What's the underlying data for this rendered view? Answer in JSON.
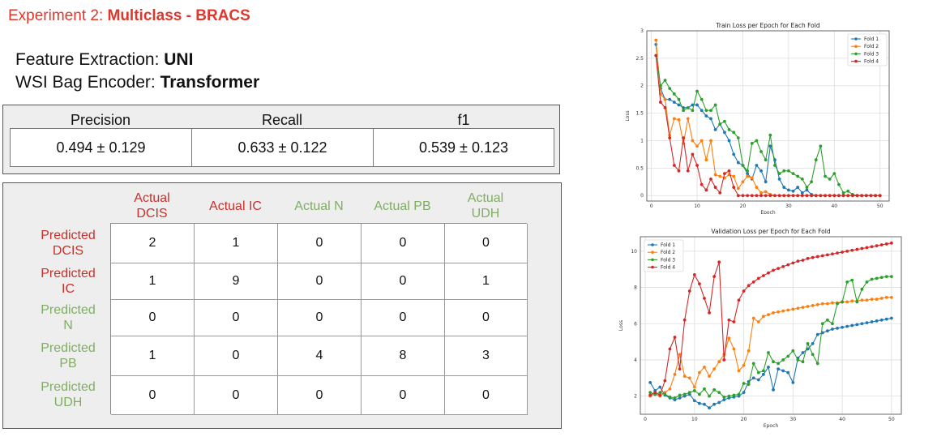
{
  "experiment": {
    "prefix": "Experiment 2: ",
    "name": "Multiclass - BRACS"
  },
  "feature": {
    "label": "Feature Extraction: ",
    "value": "UNI"
  },
  "encoder": {
    "label": "WSI Bag Encoder: ",
    "value": "Transformer"
  },
  "metrics": {
    "headers": [
      "Precision",
      "Recall",
      "f1"
    ],
    "values": [
      "0.494 ± 0.129",
      "0.633 ± 0.122",
      "0.539 ± 0.123"
    ]
  },
  "confusion": {
    "columns": [
      {
        "line1": "Actual",
        "line2": "DCIS",
        "color": "red"
      },
      {
        "line1": "Actual IC",
        "line2": "",
        "color": "red"
      },
      {
        "line1": "Actual N",
        "line2": "",
        "color": "green"
      },
      {
        "line1": "Actual PB",
        "line2": "",
        "color": "green"
      },
      {
        "line1": "Actual",
        "line2": "UDH",
        "color": "green"
      }
    ],
    "rows": [
      {
        "line1": "Predicted",
        "line2": "DCIS",
        "color": "red",
        "values": [
          "2",
          "1",
          "0",
          "0",
          "0"
        ]
      },
      {
        "line1": "Predicted",
        "line2": "IC",
        "color": "red",
        "values": [
          "1",
          "9",
          "0",
          "0",
          "1"
        ]
      },
      {
        "line1": "Predicted",
        "line2": "N",
        "color": "green",
        "values": [
          "0",
          "0",
          "0",
          "0",
          "0"
        ]
      },
      {
        "line1": "Predicted",
        "line2": "PB",
        "color": "green",
        "values": [
          "1",
          "0",
          "4",
          "8",
          "3"
        ]
      },
      {
        "line1": "Predicted",
        "line2": "UDH",
        "color": "green",
        "values": [
          "0",
          "0",
          "0",
          "0",
          "0"
        ]
      }
    ]
  },
  "colors": {
    "accent_red": "#e0362b",
    "red_label": "#c8302b",
    "green_label": "#7fae61",
    "fold1": "#1f77b4",
    "fold2": "#ff7f0e",
    "fold3": "#2ca02c",
    "fold4": "#d62728"
  },
  "chart_data": [
    {
      "type": "line",
      "title": "Train Loss per Epoch for Each Fold",
      "xlabel": "Epoch",
      "ylabel": "Loss",
      "xlim": [
        -1,
        52
      ],
      "ylim": [
        -0.1,
        3.0
      ],
      "xticks": [
        0,
        10,
        20,
        30,
        40,
        50
      ],
      "yticks": [
        0.0,
        0.5,
        1.0,
        1.5,
        2.0,
        2.5,
        3.0
      ],
      "grid": true,
      "legend": "top-right",
      "series": [
        {
          "name": "Fold 1",
          "color": "#1f77b4",
          "x": [
            1,
            2,
            3,
            4,
            5,
            6,
            7,
            8,
            9,
            10,
            11,
            12,
            13,
            14,
            15,
            16,
            17,
            18,
            19,
            20,
            21,
            22,
            23,
            24,
            25,
            26,
            27,
            28,
            29,
            30,
            31,
            32,
            33,
            34,
            35,
            36,
            37,
            38,
            39,
            40,
            41,
            42,
            43,
            44,
            45,
            46,
            47,
            48,
            49,
            50
          ],
          "values": [
            2.75,
            1.95,
            1.75,
            1.75,
            1.7,
            1.65,
            1.6,
            1.6,
            1.65,
            1.65,
            1.55,
            1.45,
            1.4,
            1.2,
            1.3,
            1.15,
            1.0,
            0.75,
            0.6,
            0.55,
            0.4,
            0.3,
            0.55,
            0.45,
            0.25,
            0.9,
            0.65,
            0.3,
            0.15,
            0.1,
            0.08,
            0.15,
            0.05,
            0.1,
            0.02,
            0,
            0,
            0,
            0,
            0,
            0,
            0,
            0,
            0,
            0,
            0,
            0,
            0,
            0,
            0
          ]
        },
        {
          "name": "Fold 2",
          "color": "#ff7f0e",
          "x": [
            1,
            2,
            3,
            4,
            5,
            6,
            7,
            8,
            9,
            10,
            11,
            12,
            13,
            14,
            15,
            16,
            17,
            18,
            19,
            20,
            21,
            22,
            23,
            24,
            25,
            26,
            27,
            28,
            29,
            30,
            31,
            32,
            33,
            34,
            35,
            36,
            37,
            38,
            39,
            40,
            41,
            42,
            43,
            44,
            45,
            46,
            47,
            48,
            49,
            50
          ],
          "values": [
            2.83,
            1.85,
            1.75,
            1.1,
            1.4,
            1.38,
            0.95,
            1.4,
            1.0,
            0.9,
            1.0,
            0.65,
            1.0,
            0.38,
            0.35,
            0.32,
            0.38,
            0.35,
            0.13,
            0.25,
            0.35,
            0.32,
            0.15,
            0.05,
            0.07,
            0.02,
            0,
            0,
            0,
            0,
            0,
            0,
            0,
            0,
            0,
            0,
            0,
            0,
            0,
            0,
            0,
            0,
            0,
            0,
            0,
            0,
            0,
            0,
            0,
            0
          ]
        },
        {
          "name": "Fold 3",
          "color": "#2ca02c",
          "x": [
            1,
            2,
            3,
            4,
            5,
            6,
            7,
            8,
            9,
            10,
            11,
            12,
            13,
            14,
            15,
            16,
            17,
            18,
            19,
            20,
            21,
            22,
            23,
            24,
            25,
            26,
            27,
            28,
            29,
            30,
            31,
            32,
            33,
            34,
            35,
            36,
            37,
            38,
            39,
            40,
            41,
            42,
            43,
            44,
            45,
            46,
            47,
            48,
            49,
            50
          ],
          "values": [
            2.55,
            2.0,
            2.1,
            1.95,
            1.85,
            1.75,
            1.55,
            1.6,
            1.55,
            1.9,
            1.75,
            1.55,
            1.55,
            1.65,
            1.3,
            1.35,
            1.2,
            1.15,
            1.05,
            0.55,
            0.45,
            0.95,
            1.0,
            0.8,
            0.65,
            1.1,
            0.55,
            0.4,
            0.45,
            0.45,
            0.4,
            0.35,
            0.3,
            0.15,
            0.25,
            0.65,
            0.9,
            0.35,
            0.3,
            0.4,
            0.2,
            0.05,
            0.08,
            0.02,
            0,
            0,
            0,
            0,
            0,
            0
          ]
        },
        {
          "name": "Fold 4",
          "color": "#d62728",
          "x": [
            1,
            2,
            3,
            4,
            5,
            6,
            7,
            8,
            9,
            10,
            11,
            12,
            13,
            14,
            15,
            16,
            17,
            18,
            19,
            20,
            21,
            22,
            23,
            24,
            25,
            26,
            27,
            28,
            29,
            30,
            31,
            32,
            33,
            34,
            35,
            36,
            37,
            38,
            39,
            40,
            41,
            42,
            43,
            44,
            45,
            46,
            47,
            48,
            49,
            50
          ],
          "values": [
            2.55,
            1.7,
            1.6,
            1.05,
            0.55,
            0.45,
            1.05,
            0.45,
            0.75,
            0.55,
            0.2,
            0.1,
            0.3,
            0.15,
            0.05,
            0.4,
            0.45,
            0.15,
            0,
            0,
            0,
            0,
            0,
            0,
            0,
            0,
            0,
            0,
            0,
            0,
            0,
            0,
            0,
            0,
            0,
            0,
            0,
            0,
            0,
            0,
            0,
            0,
            0,
            0,
            0,
            0,
            0,
            0,
            0,
            0
          ]
        }
      ]
    },
    {
      "type": "line",
      "title": "Validation Loss per Epoch for Each Fold",
      "xlabel": "Epoch",
      "ylabel": "Loss",
      "xlim": [
        -1,
        52
      ],
      "ylim": [
        1.0,
        10.8
      ],
      "xticks": [
        0,
        10,
        20,
        30,
        40,
        50
      ],
      "yticks": [
        2,
        4,
        6,
        8,
        10
      ],
      "grid": true,
      "legend": "top-left",
      "series": [
        {
          "name": "Fold 1",
          "color": "#1f77b4",
          "x": [
            1,
            2,
            3,
            4,
            5,
            6,
            7,
            8,
            9,
            10,
            11,
            12,
            13,
            14,
            15,
            16,
            17,
            18,
            19,
            20,
            21,
            22,
            23,
            24,
            25,
            26,
            27,
            28,
            29,
            30,
            31,
            32,
            33,
            34,
            35,
            36,
            37,
            38,
            39,
            40,
            41,
            42,
            43,
            44,
            45,
            46,
            47,
            48,
            49,
            50
          ],
          "values": [
            2.75,
            2.3,
            2.5,
            2.05,
            1.9,
            1.8,
            1.9,
            2.0,
            2.1,
            1.75,
            1.6,
            1.55,
            1.35,
            1.55,
            1.65,
            1.8,
            1.9,
            1.95,
            2.0,
            2.2,
            2.8,
            3.0,
            2.9,
            3.2,
            3.6,
            2.35,
            3.5,
            3.4,
            3.3,
            2.75,
            4.1,
            4.4,
            4.6,
            4.9,
            5.4,
            5.5,
            5.6,
            5.7,
            5.75,
            5.8,
            5.85,
            5.9,
            5.95,
            6.0,
            6.05,
            6.1,
            6.15,
            6.2,
            6.25,
            6.3
          ]
        },
        {
          "name": "Fold 2",
          "color": "#ff7f0e",
          "x": [
            1,
            2,
            3,
            4,
            5,
            6,
            7,
            8,
            9,
            10,
            11,
            12,
            13,
            14,
            15,
            16,
            17,
            18,
            19,
            20,
            21,
            22,
            23,
            24,
            25,
            26,
            27,
            28,
            29,
            30,
            31,
            32,
            33,
            34,
            35,
            36,
            37,
            38,
            39,
            40,
            41,
            42,
            43,
            44,
            45,
            46,
            47,
            48,
            49,
            50
          ],
          "values": [
            2.0,
            2.1,
            2.0,
            2.2,
            2.4,
            3.2,
            4.3,
            3.1,
            3.0,
            2.5,
            3.3,
            3.6,
            3.1,
            3.5,
            3.9,
            4.3,
            5.2,
            4.6,
            3.4,
            3.7,
            4.5,
            6.3,
            6.1,
            6.4,
            6.5,
            6.6,
            6.65,
            6.7,
            6.75,
            6.8,
            6.85,
            6.9,
            6.95,
            7.0,
            7.05,
            7.1,
            7.1,
            7.15,
            7.15,
            7.2,
            7.2,
            7.25,
            7.25,
            7.3,
            7.3,
            7.35,
            7.35,
            7.4,
            7.45,
            7.45
          ]
        },
        {
          "name": "Fold 3",
          "color": "#2ca02c",
          "x": [
            1,
            2,
            3,
            4,
            5,
            6,
            7,
            8,
            9,
            10,
            11,
            12,
            13,
            14,
            15,
            16,
            17,
            18,
            19,
            20,
            21,
            22,
            23,
            24,
            25,
            26,
            27,
            28,
            29,
            30,
            31,
            32,
            33,
            34,
            35,
            36,
            37,
            38,
            39,
            40,
            41,
            42,
            43,
            44,
            45,
            46,
            47,
            48,
            49,
            50
          ],
          "values": [
            2.2,
            2.1,
            2.2,
            2.1,
            1.95,
            1.9,
            2.05,
            2.1,
            2.2,
            2.3,
            2.1,
            2.4,
            2.0,
            2.35,
            2.2,
            1.95,
            2.0,
            2.05,
            2.1,
            2.7,
            2.65,
            3.8,
            3.3,
            3.4,
            4.4,
            3.9,
            3.8,
            4.0,
            4.2,
            4.5,
            4.0,
            3.9,
            4.9,
            4.3,
            3.8,
            6.0,
            6.2,
            6.0,
            7.1,
            7.2,
            8.3,
            8.4,
            7.2,
            7.9,
            8.3,
            8.45,
            8.5,
            8.55,
            8.6,
            8.6
          ]
        },
        {
          "name": "Fold 4",
          "color": "#d62728",
          "x": [
            1,
            2,
            3,
            4,
            5,
            6,
            7,
            8,
            9,
            10,
            11,
            12,
            13,
            14,
            15,
            16,
            17,
            18,
            19,
            20,
            21,
            22,
            23,
            24,
            25,
            26,
            27,
            28,
            29,
            30,
            31,
            32,
            33,
            34,
            35,
            36,
            37,
            38,
            39,
            40,
            41,
            42,
            43,
            44,
            45,
            46,
            47,
            48,
            49,
            50
          ],
          "values": [
            2.05,
            2.2,
            2.05,
            2.85,
            4.6,
            5.25,
            3.5,
            6.2,
            7.8,
            8.7,
            8.2,
            7.4,
            6.6,
            8.6,
            9.4,
            4.0,
            6.2,
            6.1,
            7.3,
            7.8,
            8.1,
            8.3,
            8.5,
            8.65,
            8.8,
            8.95,
            9.05,
            9.15,
            9.25,
            9.35,
            9.45,
            9.5,
            9.6,
            9.65,
            9.7,
            9.75,
            9.8,
            9.85,
            9.9,
            9.95,
            10.0,
            10.05,
            10.1,
            10.15,
            10.2,
            10.25,
            10.3,
            10.35,
            10.4,
            10.45
          ]
        }
      ]
    }
  ]
}
